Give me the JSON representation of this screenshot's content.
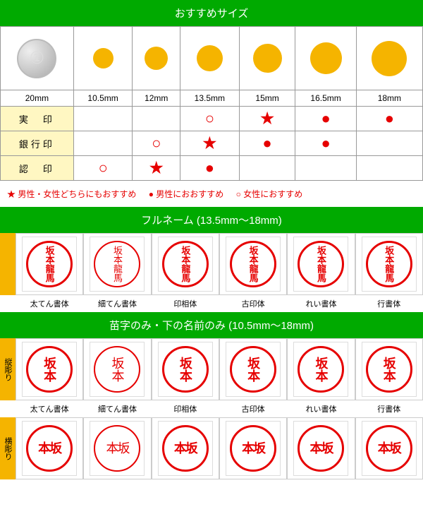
{
  "headers": {
    "h1": "おすすめサイズ",
    "h2": "フルネーム (13.5mm〜18mm)",
    "h3": "苗字のみ・下の名前のみ (10.5mm〜18mm)"
  },
  "sizes": [
    "20mm",
    "10.5mm",
    "12mm",
    "13.5mm",
    "15mm",
    "16.5mm",
    "18mm"
  ],
  "dotpx": [
    56,
    29,
    33,
    37,
    41,
    45,
    50
  ],
  "rows": [
    "実　印",
    "銀行印",
    "認　印"
  ],
  "grid": [
    [
      "",
      "",
      "",
      "○",
      "★",
      "●",
      "●"
    ],
    [
      "",
      "",
      "○",
      "★",
      "●",
      "●",
      ""
    ],
    [
      "",
      "○",
      "★",
      "●",
      "",
      "",
      ""
    ]
  ],
  "legend": {
    "star": "★ 男性・女性どちらにもおすすめ",
    "fill": "● 男性におおすすめ",
    "ring": "○ 女性におすすめ"
  },
  "fontlabels": [
    "太てん書体",
    "細てん書体",
    "印相体",
    "古印体",
    "れい書体",
    "行書体"
  ],
  "vlabels": {
    "v1": "縦彫り",
    "v2": "横彫り"
  },
  "fullname": [
    "坂本龍馬",
    "坂本龍馬",
    "坂本龍馬",
    "坂本龍馬",
    "坂本龍馬",
    "坂本龍馬"
  ],
  "surname_v": [
    "坂本",
    "坂本",
    "坂本",
    "坂本",
    "坂本",
    "坂本"
  ],
  "surname_h": [
    "本坂",
    "本坂",
    "本坂",
    "本坂",
    "本坂",
    "本坂"
  ]
}
